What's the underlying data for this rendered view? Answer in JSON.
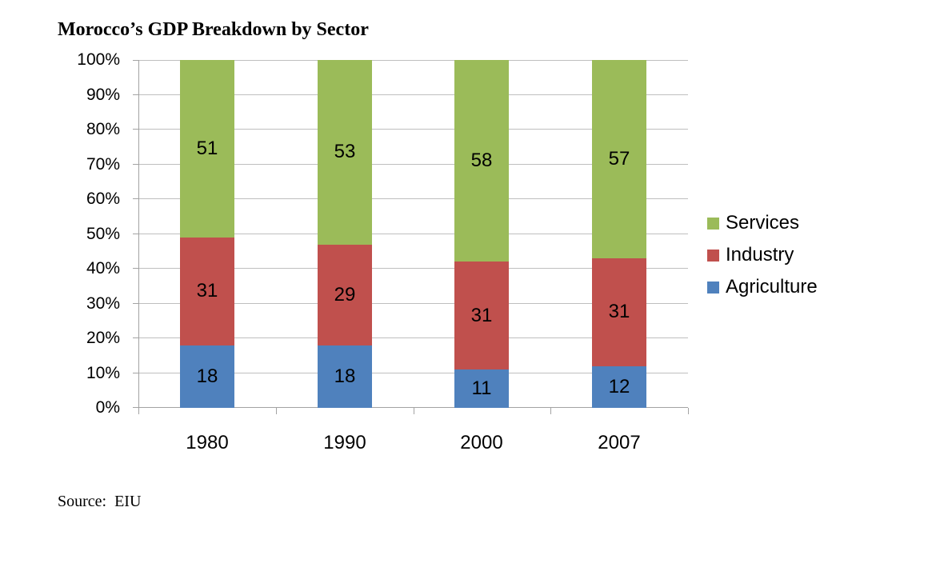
{
  "title": "Morocco’s GDP Breakdown by Sector",
  "source_note": "Source:  EIU",
  "chart_data": {
    "type": "bar",
    "stacked": true,
    "unit": "percent",
    "title": "Morocco’s GDP Breakdown by Sector",
    "categories": [
      "1980",
      "1990",
      "2000",
      "2007"
    ],
    "series": [
      {
        "name": "Agriculture",
        "color": "#4F81BD",
        "values": [
          18,
          18,
          11,
          12
        ]
      },
      {
        "name": "Industry",
        "color": "#C0504D",
        "values": [
          31,
          29,
          31,
          31
        ]
      },
      {
        "name": "Services",
        "color": "#9BBB59",
        "values": [
          51,
          53,
          58,
          57
        ]
      }
    ],
    "y_axis": {
      "min": 0,
      "max": 100,
      "step": 10,
      "tick_labels": [
        "0%",
        "10%",
        "20%",
        "30%",
        "40%",
        "50%",
        "60%",
        "70%",
        "80%",
        "90%",
        "100%"
      ]
    },
    "x_axis": {
      "tick_labels": [
        "1980",
        "1990",
        "2000",
        "2007"
      ]
    },
    "data_labels": true,
    "legend": {
      "position": "right",
      "entries": [
        "Services",
        "Industry",
        "Agriculture"
      ]
    },
    "grid": true,
    "grid_color": "#BFBFBF",
    "axis_color": "#A3A3A3",
    "label_color": "#000000",
    "background": "#FFFFFF"
  }
}
